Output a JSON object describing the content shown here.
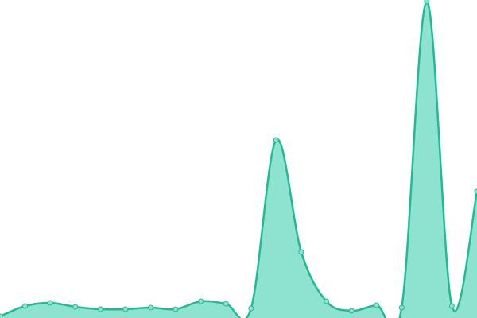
{
  "chart_data": {
    "type": "area",
    "x": [
      0,
      1,
      2,
      3,
      4,
      5,
      6,
      7,
      8,
      9,
      10,
      11,
      12,
      13,
      14,
      15,
      16,
      17,
      18,
      19
    ],
    "xlim": [
      0,
      19
    ],
    "ylim": [
      0,
      400
    ],
    "series": [
      {
        "color": "#1fba96",
        "fill_color": "#8de3cf",
        "values": [
          2,
          15,
          19,
          14,
          11,
          11,
          13,
          11,
          21,
          18,
          12,
          224,
          83,
          21,
          9,
          16,
          13,
          398,
          15,
          159
        ]
      }
    ]
  }
}
